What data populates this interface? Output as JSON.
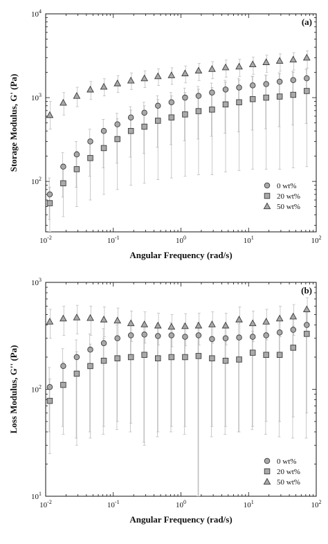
{
  "chart_data": [
    {
      "type": "scatter",
      "panel_label": "(a)",
      "title": "",
      "xlabel": "Angular Frequency (rad/s)",
      "ylabel": "Storage Modulus, G' (Pa)",
      "x_scale": "log",
      "y_scale": "log",
      "xlim": [
        0.01,
        100
      ],
      "ylim": [
        25,
        10000
      ],
      "x_ticks": [
        {
          "value": 0.01,
          "base": "10",
          "exp": "-2"
        },
        {
          "value": 0.1,
          "base": "10",
          "exp": "-1"
        },
        {
          "value": 1,
          "base": "10",
          "exp": "0"
        },
        {
          "value": 10,
          "base": "10",
          "exp": "1"
        },
        {
          "value": 100,
          "base": "10",
          "exp": "2"
        }
      ],
      "y_ticks": [
        {
          "value": 100,
          "base": "10",
          "exp": "2"
        },
        {
          "value": 1000,
          "base": "10",
          "exp": "3"
        },
        {
          "value": 10000,
          "base": "10",
          "exp": "4"
        }
      ],
      "grid": false,
      "legend_position": "bottom-right",
      "x": [
        0.0115,
        0.0182,
        0.0288,
        0.0457,
        0.0724,
        0.115,
        0.182,
        0.288,
        0.457,
        0.724,
        1.15,
        1.82,
        2.88,
        4.57,
        7.24,
        11.5,
        18.2,
        28.8,
        45.7,
        72.4
      ],
      "series": [
        {
          "name": "0 wt%",
          "marker": "circle",
          "values": [
            70,
            150,
            210,
            300,
            400,
            480,
            580,
            660,
            800,
            880,
            1000,
            1050,
            1150,
            1250,
            1320,
            1400,
            1450,
            1550,
            1620,
            1700
          ],
          "err_lower": [
            35,
            65,
            85,
            115,
            145,
            165,
            195,
            215,
            255,
            275,
            305,
            320,
            345,
            375,
            390,
            410,
            425,
            450,
            470,
            490
          ],
          "err_upper": [
            110,
            220,
            300,
            420,
            550,
            650,
            780,
            880,
            1050,
            1150,
            1300,
            1360,
            1490,
            1610,
            1700,
            1800,
            1860,
            1980,
            2060,
            2160
          ]
        },
        {
          "name": "20 wt%",
          "marker": "square",
          "values": [
            55,
            95,
            140,
            190,
            250,
            320,
            400,
            450,
            530,
            580,
            630,
            690,
            720,
            830,
            880,
            960,
            1000,
            1030,
            1080,
            1200
          ],
          "err_lower": [
            25,
            38,
            50,
            60,
            70,
            80,
            90,
            95,
            105,
            110,
            115,
            120,
            120,
            130,
            135,
            140,
            140,
            140,
            145,
            150
          ],
          "err_upper": [
            85,
            155,
            230,
            320,
            430,
            560,
            710,
            800,
            950,
            1050,
            1150,
            1260,
            1320,
            1530,
            1630,
            1780,
            1860,
            1920,
            2010,
            2240
          ]
        },
        {
          "name": "50 wt%",
          "marker": "triangle",
          "values": [
            620,
            870,
            1050,
            1250,
            1350,
            1480,
            1600,
            1700,
            1800,
            1850,
            1950,
            2100,
            2200,
            2300,
            2350,
            2500,
            2650,
            2750,
            2850,
            3000
          ],
          "err_lower": [
            420,
            620,
            780,
            950,
            1050,
            1150,
            1250,
            1320,
            1400,
            1440,
            1500,
            1600,
            1680,
            1750,
            1790,
            1900,
            2000,
            2070,
            2140,
            2240
          ],
          "err_upper": [
            900,
            1150,
            1330,
            1560,
            1680,
            1830,
            1970,
            2090,
            2210,
            2270,
            2390,
            2570,
            2690,
            2810,
            2870,
            3040,
            3220,
            3330,
            3450,
            3620
          ]
        }
      ]
    },
    {
      "type": "scatter",
      "panel_label": "(b)",
      "title": "",
      "xlabel": "Angular Frequency (rad/s)",
      "ylabel": "Loss Modulus, G'' (Pa)",
      "x_scale": "log",
      "y_scale": "log",
      "xlim": [
        0.01,
        100
      ],
      "ylim": [
        10,
        1000
      ],
      "x_ticks": [
        {
          "value": 0.01,
          "base": "10",
          "exp": "-2"
        },
        {
          "value": 0.1,
          "base": "10",
          "exp": "-1"
        },
        {
          "value": 1,
          "base": "10",
          "exp": "0"
        },
        {
          "value": 10,
          "base": "10",
          "exp": "1"
        },
        {
          "value": 100,
          "base": "10",
          "exp": "2"
        }
      ],
      "y_ticks": [
        {
          "value": 10,
          "base": "10",
          "exp": "1"
        },
        {
          "value": 100,
          "base": "10",
          "exp": "2"
        },
        {
          "value": 1000,
          "base": "10",
          "exp": "3"
        }
      ],
      "grid": false,
      "legend_position": "bottom-right",
      "x": [
        0.0115,
        0.0182,
        0.0288,
        0.0457,
        0.0724,
        0.115,
        0.182,
        0.288,
        0.457,
        0.724,
        1.15,
        1.82,
        2.88,
        4.57,
        7.24,
        11.5,
        18.2,
        28.8,
        45.7,
        72.4
      ],
      "series": [
        {
          "name": "0 wt%",
          "marker": "circle",
          "values": [
            105,
            165,
            200,
            235,
            270,
            300,
            320,
            325,
            315,
            320,
            310,
            320,
            295,
            300,
            305,
            310,
            320,
            340,
            360,
            400
          ],
          "err_lower": [
            40,
            45,
            35,
            40,
            38,
            42,
            40,
            32,
            36,
            40,
            38,
            10,
            36,
            38,
            40,
            42,
            38,
            36,
            35,
            35
          ],
          "err_upper": [
            160,
            240,
            290,
            330,
            370,
            400,
            420,
            420,
            410,
            420,
            410,
            420,
            390,
            400,
            410,
            420,
            430,
            460,
            490,
            540
          ]
        },
        {
          "name": "20 wt%",
          "marker": "square",
          "values": [
            78,
            110,
            140,
            165,
            185,
            195,
            200,
            210,
            195,
            200,
            200,
            205,
            195,
            185,
            190,
            220,
            210,
            210,
            245,
            330
          ],
          "err_lower": [
            25,
            38,
            30,
            35,
            45,
            50,
            48,
            30,
            40,
            45,
            45,
            10,
            45,
            45,
            40,
            45,
            50,
            50,
            55,
            60
          ],
          "err_upper": [
            125,
            180,
            225,
            265,
            300,
            310,
            320,
            330,
            310,
            320,
            320,
            330,
            310,
            300,
            305,
            350,
            340,
            340,
            390,
            520
          ]
        },
        {
          "name": "50 wt%",
          "marker": "triangle",
          "values": [
            430,
            460,
            470,
            465,
            450,
            440,
            415,
            405,
            395,
            385,
            390,
            395,
            405,
            395,
            450,
            415,
            430,
            460,
            480,
            560
          ],
          "err_lower": [
            300,
            320,
            330,
            320,
            310,
            300,
            280,
            270,
            260,
            250,
            255,
            260,
            270,
            260,
            300,
            280,
            290,
            310,
            320,
            380
          ],
          "err_upper": [
            560,
            600,
            610,
            600,
            590,
            575,
            540,
            530,
            515,
            500,
            510,
            515,
            530,
            515,
            590,
            540,
            560,
            600,
            620,
            720
          ]
        }
      ]
    }
  ],
  "colors": {
    "marker_fill": "#a9a9a9",
    "marker_stroke": "#3a3a3a",
    "error_bar": "#bdbdbd",
    "axis": "#111111"
  }
}
